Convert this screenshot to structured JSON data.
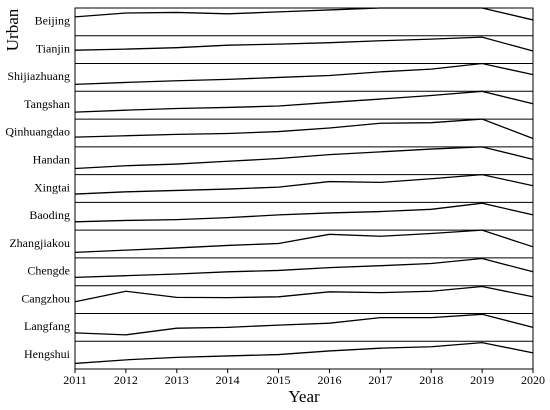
{
  "chart_data": {
    "type": "line",
    "y_label": "Urban",
    "x_label": "Year",
    "x": [
      2011,
      2012,
      2013,
      2014,
      2015,
      2016,
      2017,
      2018,
      2019,
      2020
    ],
    "xlim": [
      2011,
      2020
    ],
    "xticks": [
      2011,
      2012,
      2013,
      2014,
      2015,
      2016,
      2017,
      2018,
      2019,
      2020
    ],
    "ylim": [
      0,
      1
    ],
    "color": "#000000",
    "series": [
      {
        "name": "Beijing",
        "values": [
          0.68,
          0.82,
          0.84,
          0.79,
          0.86,
          0.93,
          1.0,
          1.0,
          1.0,
          0.57
        ]
      },
      {
        "name": "Tianjin",
        "values": [
          0.48,
          0.52,
          0.57,
          0.66,
          0.7,
          0.75,
          0.82,
          0.88,
          0.95,
          0.45
        ]
      },
      {
        "name": "Shijiazhuang",
        "values": [
          0.25,
          0.32,
          0.38,
          0.43,
          0.5,
          0.57,
          0.7,
          0.8,
          1.0,
          0.6
        ]
      },
      {
        "name": "Tangshan",
        "values": [
          0.25,
          0.32,
          0.38,
          0.42,
          0.47,
          0.6,
          0.72,
          0.85,
          1.0,
          0.55
        ]
      },
      {
        "name": "Qinhuangdao",
        "values": [
          0.35,
          0.4,
          0.45,
          0.48,
          0.55,
          0.68,
          0.85,
          0.87,
          1.0,
          0.3
        ]
      },
      {
        "name": "Handan",
        "values": [
          0.22,
          0.32,
          0.38,
          0.48,
          0.58,
          0.72,
          0.82,
          0.92,
          1.0,
          0.55
        ]
      },
      {
        "name": "Xingtai",
        "values": [
          0.3,
          0.38,
          0.43,
          0.48,
          0.55,
          0.75,
          0.72,
          0.85,
          1.0,
          0.6
        ]
      },
      {
        "name": "Baoding",
        "values": [
          0.3,
          0.35,
          0.38,
          0.45,
          0.55,
          0.62,
          0.67,
          0.75,
          0.97,
          0.55
        ]
      },
      {
        "name": "Zhangjiakou",
        "values": [
          0.2,
          0.28,
          0.36,
          0.45,
          0.52,
          0.85,
          0.78,
          0.88,
          1.0,
          0.4
        ]
      },
      {
        "name": "Chengde",
        "values": [
          0.3,
          0.36,
          0.42,
          0.5,
          0.55,
          0.65,
          0.72,
          0.8,
          0.98,
          0.5
        ]
      },
      {
        "name": "Cangzhou",
        "values": [
          0.42,
          0.8,
          0.58,
          0.57,
          0.6,
          0.78,
          0.75,
          0.8,
          0.97,
          0.6
        ]
      },
      {
        "name": "Langfang",
        "values": [
          0.3,
          0.23,
          0.47,
          0.5,
          0.58,
          0.65,
          0.85,
          0.85,
          0.97,
          0.5
        ]
      },
      {
        "name": "Hengshui",
        "values": [
          0.2,
          0.33,
          0.42,
          0.47,
          0.52,
          0.65,
          0.75,
          0.8,
          0.95,
          0.58
        ]
      }
    ]
  }
}
